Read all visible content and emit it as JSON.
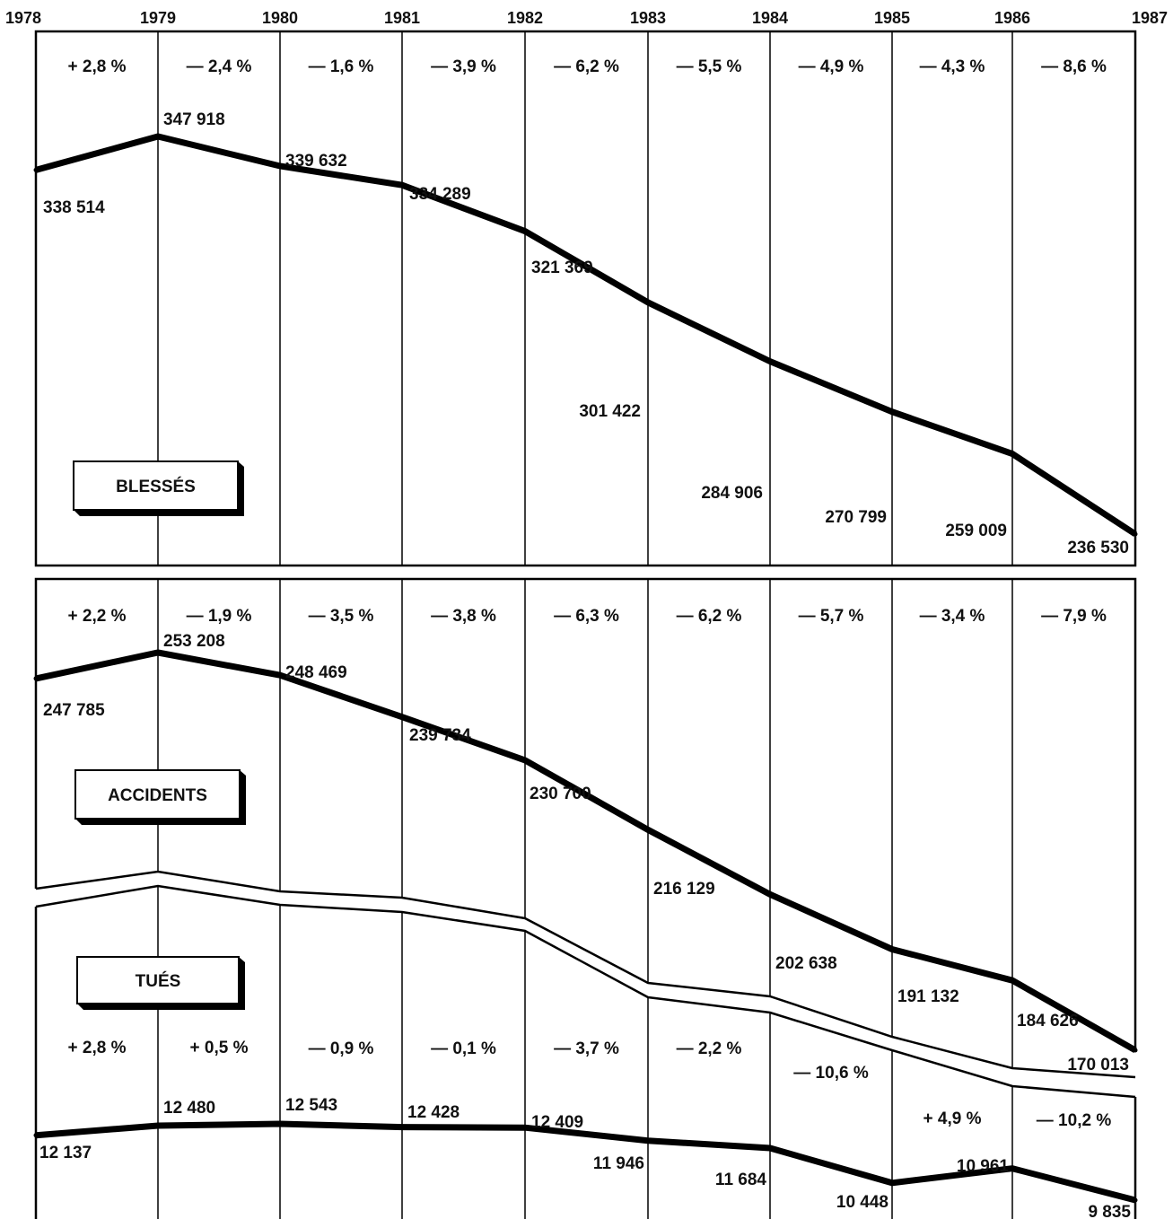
{
  "chart_data": {
    "type": "line",
    "x": [
      "1978",
      "1979",
      "1980",
      "1981",
      "1982",
      "1983",
      "1984",
      "1985",
      "1986",
      "1987"
    ],
    "panels": [
      {
        "name": "BLESSÉS",
        "values": [
          338514,
          347918,
          339632,
          334289,
          321369,
          301422,
          284906,
          270799,
          259009,
          236530
        ],
        "value_labels": [
          "338 514",
          "347 918",
          "339 632",
          "334 289",
          "321 369",
          "301 422",
          "284 906",
          "270 799",
          "259 009",
          "236 530"
        ],
        "changes": [
          "+ 2,8 %",
          "— 2,4 %",
          "— 1,6 %",
          "— 3,9 %",
          "— 6,2 %",
          "— 5,5 %",
          "— 4,9 %",
          "— 4,3 %",
          "— 8,6 %"
        ]
      },
      {
        "name": "ACCIDENTS",
        "values": [
          247785,
          253208,
          248469,
          239734,
          230700,
          216129,
          202638,
          191132,
          184626,
          170013
        ],
        "value_labels": [
          "247 785",
          "253 208",
          "248 469",
          "239 734",
          "230 700",
          "216 129",
          "202 638",
          "191 132",
          "184 626",
          "170 013"
        ],
        "changes": [
          "+ 2,2 %",
          "— 1,9 %",
          "— 3,5 %",
          "— 3,8 %",
          "— 6,3 %",
          "— 6,2 %",
          "— 5,7 %",
          "— 3,4 %",
          "— 7,9 %"
        ]
      },
      {
        "name": "TUÉS",
        "values": [
          12137,
          12480,
          12543,
          12428,
          12409,
          11946,
          11684,
          10448,
          10961,
          9835
        ],
        "value_labels": [
          "12 137",
          "12 480",
          "12 543",
          "12 428",
          "12 409",
          "11 946",
          "11 684",
          "10 448",
          "10 961",
          "9 835"
        ],
        "changes": [
          "+ 2,8 %",
          "+ 0,5 %",
          "— 0,9 %",
          "— 0,1 %",
          "— 3,7 %",
          "— 2,2 %",
          "— 10,6 %",
          "+ 4,9 %",
          "— 10,2 %"
        ]
      }
    ],
    "grid": true,
    "colors": {
      "line": "#000000",
      "background": "#ffffff"
    }
  }
}
